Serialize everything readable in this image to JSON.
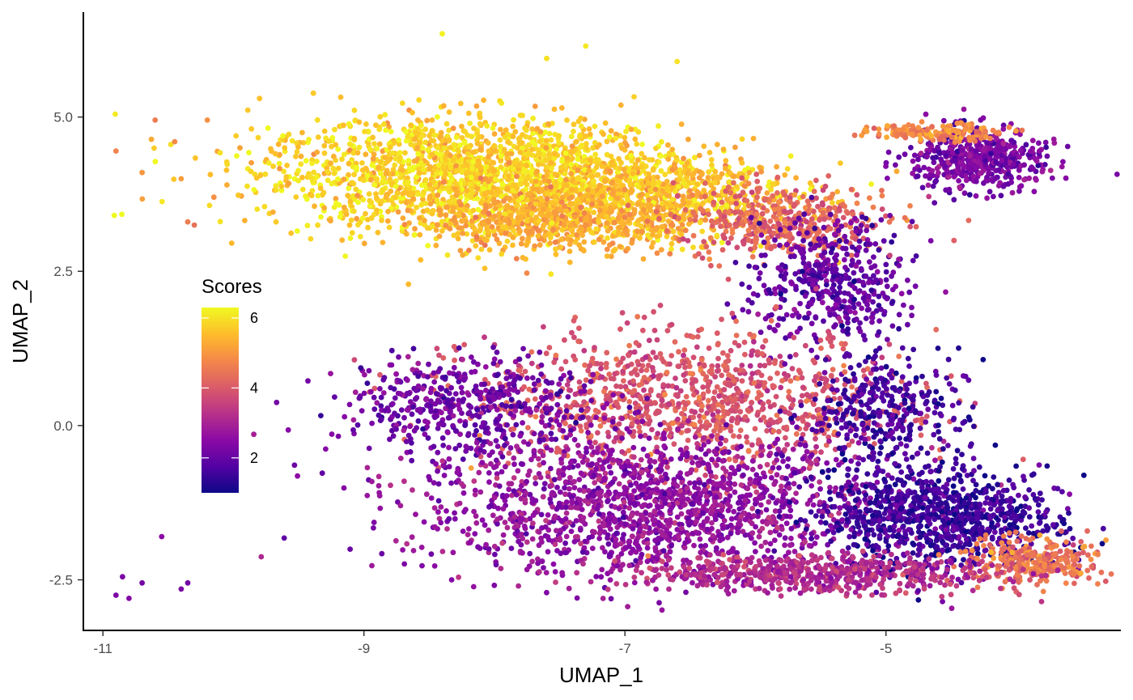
{
  "chart_data": {
    "type": "scatter",
    "title": "",
    "xlabel": "UMAP_1",
    "ylabel": "UMAP_2",
    "xlim": [
      -11.15,
      -3.2
    ],
    "ylim": [
      -3.32,
      6.7
    ],
    "x_ticks": [
      -11,
      -9,
      -7,
      -5
    ],
    "y_ticks": [
      -2.5,
      0.0,
      2.5,
      5.0
    ],
    "x_tick_labels": [
      "-11",
      "-9",
      "-7",
      "-5"
    ],
    "y_tick_labels": [
      "-2.5",
      "0.0",
      "2.5",
      "5.0"
    ],
    "grid": false,
    "color_scale": {
      "name": "Scores",
      "palette": "plasma",
      "range": [
        1,
        6.3
      ],
      "ticks": [
        2,
        4,
        6
      ],
      "tick_labels": [
        "2",
        "4",
        "6"
      ],
      "colors": [
        "#0d0887",
        "#5302a3",
        "#8b0aa5",
        "#b83289",
        "#db5c68",
        "#f48849",
        "#febd2a",
        "#f0f921"
      ]
    },
    "legend_position": "inside-left",
    "clusters": [
      {
        "name": "upper band",
        "center": [
          -8.2,
          4.1
        ],
        "spread": [
          0.8,
          0.45
        ],
        "n": 1800,
        "score": 5.8
      },
      {
        "name": "upper band right",
        "center": [
          -6.9,
          3.7
        ],
        "spread": [
          0.6,
          0.35
        ],
        "n": 900,
        "score": 5.6
      },
      {
        "name": "upper band dense",
        "center": [
          -7.6,
          3.3
        ],
        "spread": [
          0.45,
          0.25
        ],
        "n": 500,
        "score": 5.3
      },
      {
        "name": "bridge",
        "center": [
          -5.8,
          3.3
        ],
        "spread": [
          0.4,
          0.3
        ],
        "n": 400,
        "score": 4.2
      },
      {
        "name": "right arm",
        "center": [
          -4.3,
          4.3
        ],
        "spread": [
          0.25,
          0.25
        ],
        "n": 500,
        "score": 2.3
      },
      {
        "name": "right arm top",
        "center": [
          -4.6,
          4.75
        ],
        "spread": [
          0.25,
          0.07
        ],
        "n": 150,
        "score": 4.8
      },
      {
        "name": "stem",
        "center": [
          -5.4,
          2.3
        ],
        "spread": [
          0.3,
          0.5
        ],
        "n": 450,
        "score": 2.0
      },
      {
        "name": "middle",
        "center": [
          -6.5,
          0.4
        ],
        "spread": [
          0.8,
          0.55
        ],
        "n": 1100,
        "score": 3.9
      },
      {
        "name": "lower band",
        "center": [
          -6.8,
          -1.3
        ],
        "spread": [
          0.9,
          0.55
        ],
        "n": 1600,
        "score": 2.6
      },
      {
        "name": "lower left arm",
        "center": [
          -8.2,
          0.3
        ],
        "spread": [
          0.5,
          0.4
        ],
        "n": 500,
        "score": 2.2
      },
      {
        "name": "lower right dense",
        "center": [
          -4.6,
          -1.5
        ],
        "spread": [
          0.45,
          0.4
        ],
        "n": 900,
        "score": 1.5
      },
      {
        "name": "lower right tip",
        "center": [
          -3.9,
          -2.2
        ],
        "spread": [
          0.3,
          0.18
        ],
        "n": 300,
        "score": 4.5
      },
      {
        "name": "lower edge",
        "center": [
          -5.6,
          -2.4
        ],
        "spread": [
          0.7,
          0.15
        ],
        "n": 600,
        "score": 3.2
      },
      {
        "name": "right edge",
        "center": [
          -5.0,
          0.2
        ],
        "spread": [
          0.3,
          0.5
        ],
        "n": 350,
        "score": 1.6
      }
    ],
    "outliers": [
      {
        "x": -10.9,
        "y": 4.45,
        "score": 4.7
      },
      {
        "x": -10.7,
        "y": 4.1,
        "score": 5.0
      },
      {
        "x": -10.6,
        "y": 4.95,
        "score": 4.6
      },
      {
        "x": -10.45,
        "y": 4.6,
        "score": 4.8
      },
      {
        "x": -10.4,
        "y": 4.0,
        "score": 5.1
      },
      {
        "x": -10.35,
        "y": 3.3,
        "score": 4.6
      },
      {
        "x": -10.3,
        "y": 3.25,
        "score": 4.4
      },
      {
        "x": -10.2,
        "y": 4.95,
        "score": 4.9
      },
      {
        "x": -10.15,
        "y": 3.7,
        "score": 4.9
      },
      {
        "x": -10.05,
        "y": 3.9,
        "score": 5.3
      },
      {
        "x": -9.95,
        "y": 4.5,
        "score": 5.2
      },
      {
        "x": -9.8,
        "y": 5.3,
        "score": 5.6
      },
      {
        "x": -10.55,
        "y": -1.8,
        "score": 2.5
      },
      {
        "x": -10.9,
        "y": -2.75,
        "score": 2.3
      },
      {
        "x": -10.85,
        "y": -2.45,
        "score": 2.3
      },
      {
        "x": -10.8,
        "y": -2.8,
        "score": 2.4
      },
      {
        "x": -10.7,
        "y": -2.55,
        "score": 2.2
      },
      {
        "x": -10.4,
        "y": -2.65,
        "score": 2.3
      },
      {
        "x": -10.35,
        "y": -2.55,
        "score": 2.2
      },
      {
        "x": -8.4,
        "y": 6.35,
        "score": 6.2
      },
      {
        "x": -7.3,
        "y": 6.15,
        "score": 6.1
      },
      {
        "x": -7.6,
        "y": 5.95,
        "score": 6.0
      },
      {
        "x": -6.6,
        "y": 5.9,
        "score": 6.0
      }
    ]
  }
}
